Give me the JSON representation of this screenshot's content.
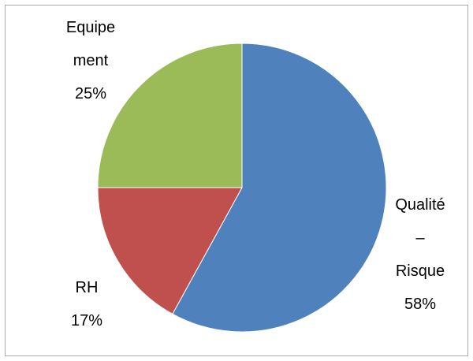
{
  "chart_data": {
    "type": "pie",
    "categories": [
      "Qualité – Risque",
      "RH",
      "Equipement"
    ],
    "values": [
      58,
      17,
      25
    ],
    "value_labels": [
      "58%",
      "17%",
      "25%"
    ],
    "colors": [
      "#4f81bd",
      "#c0504d",
      "#9bbb59"
    ]
  }
}
